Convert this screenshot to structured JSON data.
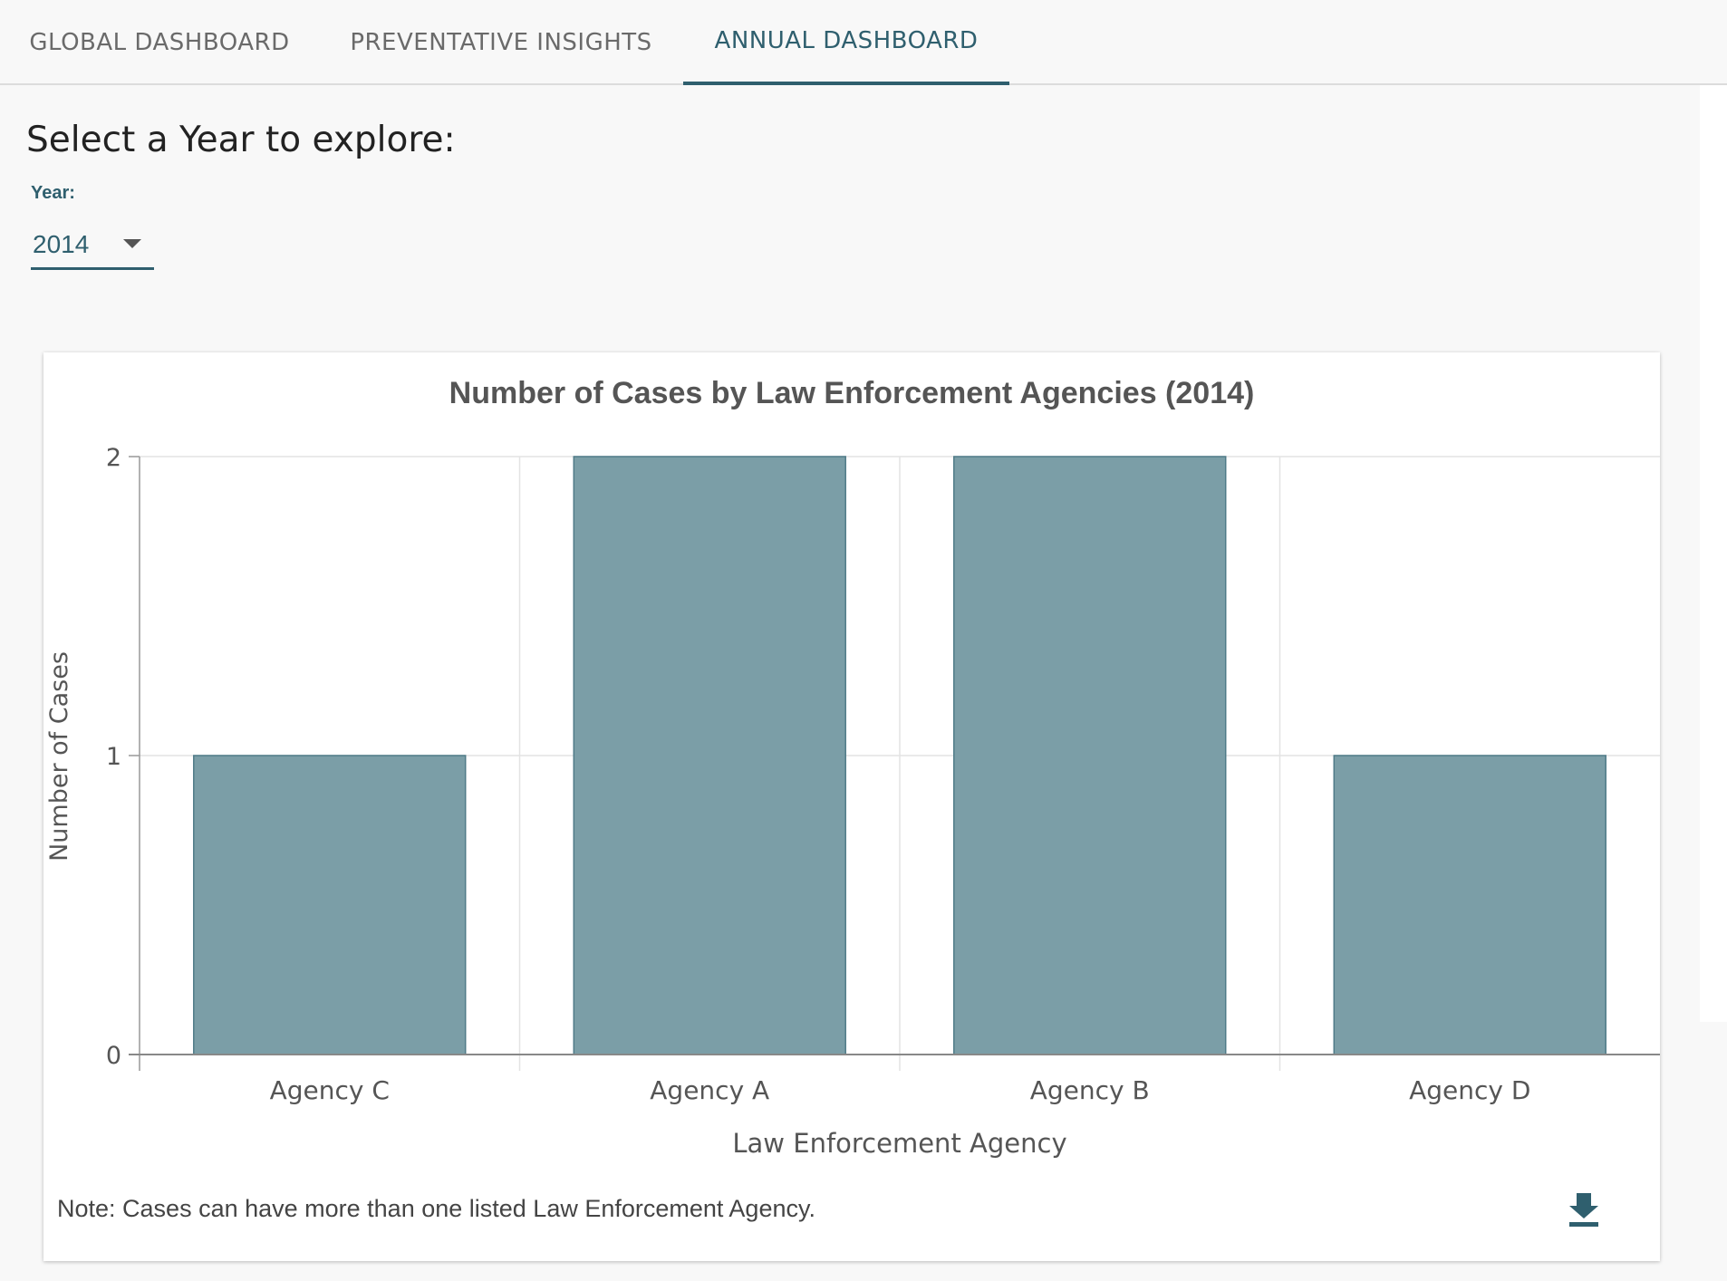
{
  "tabs": [
    {
      "label": "GLOBAL DASHBOARD",
      "active": false
    },
    {
      "label": "PREVENTATIVE INSIGHTS",
      "active": false
    },
    {
      "label": "ANNUAL DASHBOARD",
      "active": true
    }
  ],
  "selector": {
    "heading": "Select a Year to explore:",
    "label": "Year:",
    "value": "2014"
  },
  "chart_data": {
    "type": "bar",
    "title": "Number of Cases by Law Enforcement Agencies (2014)",
    "xlabel": "Law Enforcement Agency",
    "ylabel": "Number of Cases",
    "categories": [
      "Agency C",
      "Agency A",
      "Agency B",
      "Agency D"
    ],
    "values": [
      1,
      2,
      2,
      1
    ],
    "ylim": [
      0,
      2
    ],
    "yticks": [
      0,
      1,
      2
    ],
    "grid": true,
    "bar_color": "#7b9ea7",
    "bar_stroke": "#4f7b88"
  },
  "footer": {
    "note": "Note: Cases can have more than one listed Law Enforcement Agency.",
    "download_icon": "download-icon"
  },
  "colors": {
    "accent": "#2f5f6e"
  }
}
